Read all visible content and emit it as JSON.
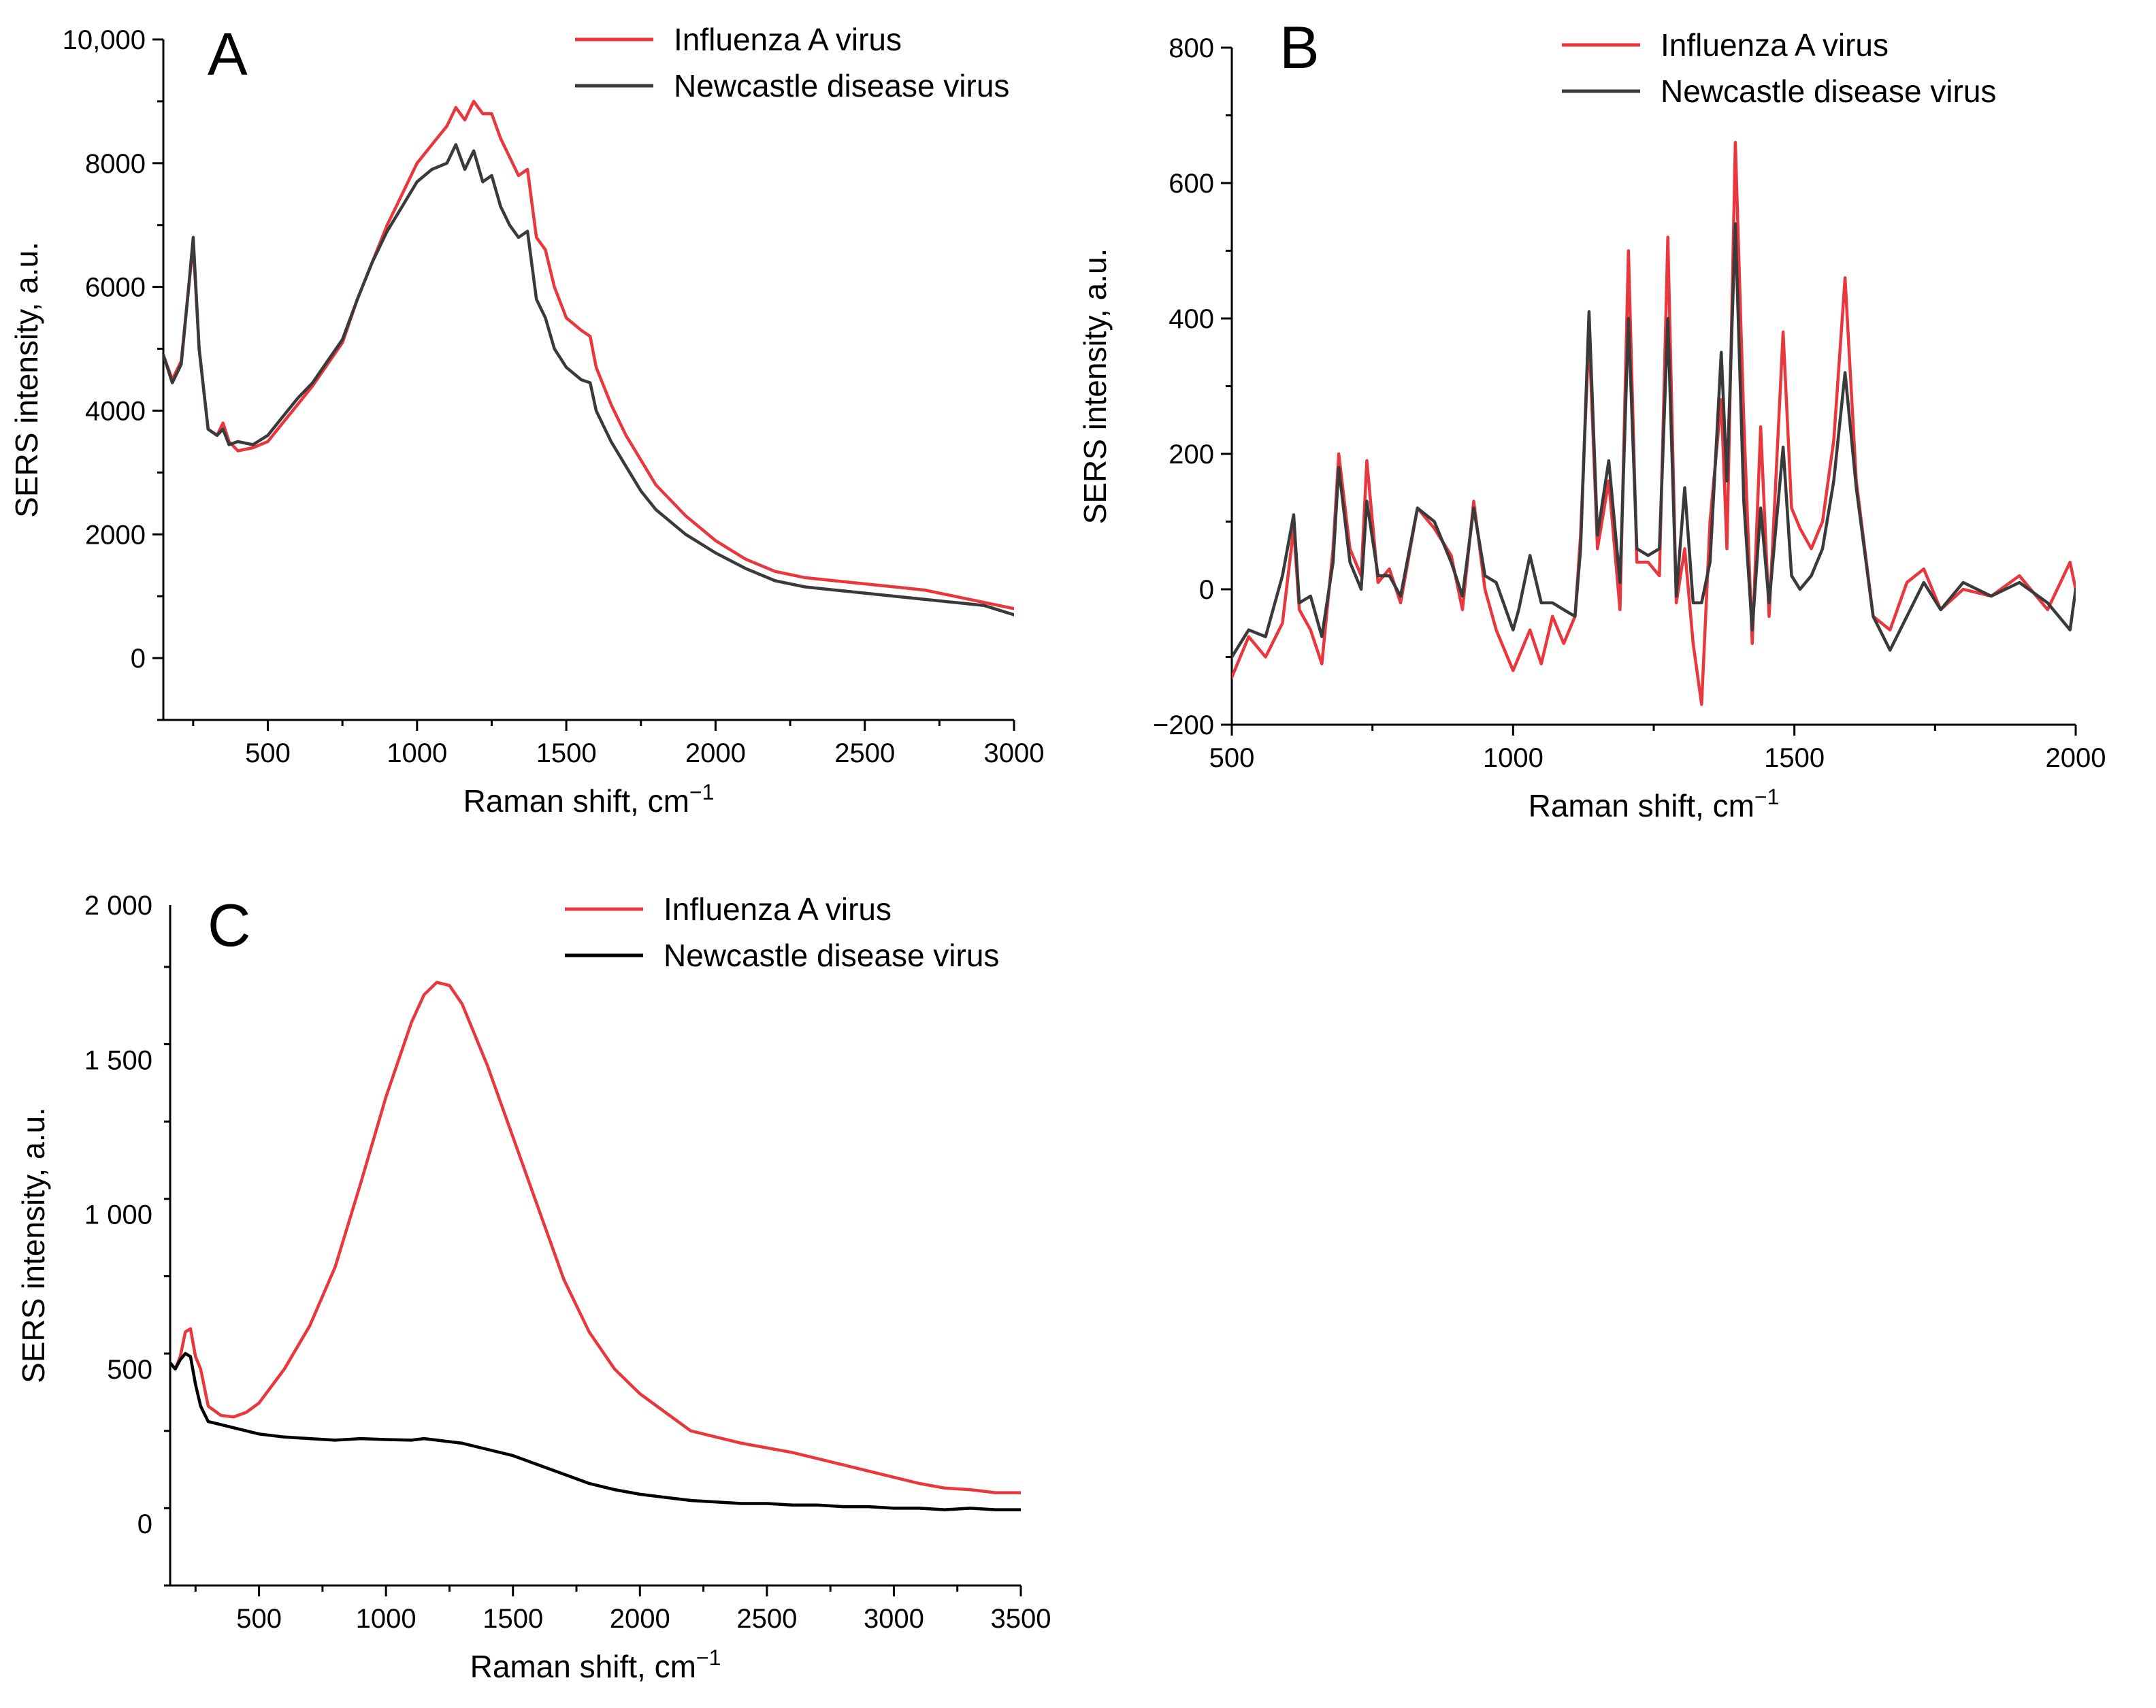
{
  "chart_data": [
    {
      "type": "line",
      "panel": "A",
      "xlabel": "Raman shift, cm",
      "xlabel_sup": "−1",
      "ylabel": "SERS intensity, a.u.",
      "xlim": [
        150,
        3000
      ],
      "ylim": [
        -1000,
        10000
      ],
      "xticks": [
        500,
        1000,
        1500,
        2000,
        2500,
        3000
      ],
      "xtick_labels": [
        "500",
        "1000",
        "1500",
        "2000",
        "2500",
        "3000"
      ],
      "yticks": [
        0,
        2000,
        4000,
        6000,
        8000,
        10000
      ],
      "ytick_labels": [
        "0",
        "2000",
        "4000",
        "6000",
        "8000",
        "10,000"
      ],
      "legend_position": "top-right",
      "series": [
        {
          "name": "Influenza A virus",
          "color": "#e8373d",
          "x": [
            150,
            180,
            210,
            235,
            250,
            270,
            300,
            330,
            350,
            370,
            400,
            450,
            500,
            550,
            600,
            650,
            700,
            750,
            800,
            850,
            900,
            950,
            1000,
            1050,
            1100,
            1130,
            1160,
            1190,
            1220,
            1250,
            1280,
            1310,
            1340,
            1370,
            1400,
            1430,
            1460,
            1500,
            1550,
            1580,
            1600,
            1650,
            1700,
            1750,
            1800,
            1900,
            2000,
            2100,
            2200,
            2300,
            2400,
            2500,
            2600,
            2700,
            2800,
            2900,
            3000
          ],
          "y": [
            4900,
            4500,
            4800,
            6000,
            6700,
            5000,
            3700,
            3600,
            3800,
            3500,
            3350,
            3400,
            3500,
            3800,
            4100,
            4400,
            4750,
            5100,
            5800,
            6400,
            7000,
            7500,
            8000,
            8300,
            8600,
            8900,
            8700,
            9000,
            8800,
            8800,
            8400,
            8100,
            7800,
            7900,
            6800,
            6600,
            6000,
            5500,
            5300,
            5200,
            4700,
            4100,
            3600,
            3200,
            2800,
            2300,
            1900,
            1600,
            1400,
            1300,
            1250,
            1200,
            1150,
            1100,
            1000,
            900,
            800
          ]
        },
        {
          "name": "Newcastle disease virus",
          "color": "#3a3a3a",
          "x": [
            150,
            180,
            210,
            235,
            250,
            270,
            300,
            330,
            350,
            370,
            400,
            450,
            500,
            550,
            600,
            650,
            700,
            750,
            800,
            850,
            900,
            950,
            1000,
            1050,
            1100,
            1130,
            1160,
            1190,
            1220,
            1250,
            1280,
            1310,
            1340,
            1370,
            1400,
            1430,
            1460,
            1500,
            1550,
            1580,
            1600,
            1650,
            1700,
            1750,
            1800,
            1900,
            2000,
            2100,
            2200,
            2300,
            2400,
            2500,
            2600,
            2700,
            2800,
            2900,
            3000
          ],
          "y": [
            4900,
            4450,
            4750,
            6000,
            6800,
            5000,
            3700,
            3600,
            3700,
            3450,
            3500,
            3450,
            3600,
            3900,
            4200,
            4450,
            4800,
            5150,
            5800,
            6400,
            6900,
            7300,
            7700,
            7900,
            8000,
            8300,
            7900,
            8200,
            7700,
            7800,
            7300,
            7000,
            6800,
            6900,
            5800,
            5500,
            5000,
            4700,
            4500,
            4450,
            4000,
            3500,
            3100,
            2700,
            2400,
            2000,
            1700,
            1450,
            1250,
            1150,
            1100,
            1050,
            1000,
            950,
            900,
            850,
            700
          ]
        }
      ]
    },
    {
      "type": "line",
      "panel": "B",
      "xlabel": "Raman shift, cm",
      "xlabel_sup": "−1",
      "ylabel": "SERS intensity, a.u.",
      "xlim": [
        500,
        2000
      ],
      "ylim": [
        -200,
        800
      ],
      "xticks": [
        500,
        1000,
        1500,
        2000
      ],
      "xtick_labels": [
        "500",
        "1000",
        "1500",
        "2000"
      ],
      "yticks": [
        -200,
        0,
        200,
        400,
        600,
        800
      ],
      "ytick_labels": [
        "−200",
        "0",
        "200",
        "400",
        "600",
        "800"
      ],
      "legend_position": "top-right",
      "series": [
        {
          "name": "Influenza A virus",
          "color": "#e8373d",
          "x": [
            500,
            530,
            560,
            590,
            610,
            620,
            640,
            660,
            680,
            690,
            710,
            730,
            740,
            760,
            780,
            800,
            830,
            860,
            890,
            910,
            930,
            950,
            970,
            1000,
            1010,
            1030,
            1050,
            1070,
            1090,
            1110,
            1120,
            1135,
            1150,
            1170,
            1190,
            1205,
            1220,
            1240,
            1260,
            1275,
            1290,
            1305,
            1320,
            1335,
            1350,
            1370,
            1380,
            1395,
            1410,
            1425,
            1440,
            1455,
            1480,
            1495,
            1510,
            1530,
            1550,
            1570,
            1590,
            1610,
            1640,
            1670,
            1700,
            1730,
            1760,
            1800,
            1850,
            1900,
            1950,
            1990,
            2000
          ],
          "y": [
            -130,
            -70,
            -100,
            -50,
            90,
            -30,
            -60,
            -110,
            60,
            200,
            60,
            20,
            190,
            10,
            30,
            -20,
            120,
            90,
            50,
            -30,
            130,
            0,
            -60,
            -120,
            -100,
            -60,
            -110,
            -40,
            -80,
            -40,
            80,
            380,
            60,
            160,
            -30,
            500,
            40,
            40,
            20,
            520,
            -20,
            60,
            -80,
            -170,
            100,
            280,
            60,
            660,
            250,
            -80,
            240,
            -40,
            380,
            120,
            90,
            60,
            100,
            220,
            460,
            160,
            -40,
            -60,
            10,
            30,
            -30,
            0,
            -10,
            20,
            -30,
            40,
            0
          ]
        },
        {
          "name": "Newcastle disease virus",
          "color": "#3a3a3a",
          "x": [
            500,
            530,
            560,
            590,
            610,
            620,
            640,
            660,
            680,
            690,
            710,
            730,
            740,
            760,
            780,
            800,
            830,
            860,
            890,
            910,
            930,
            950,
            970,
            1000,
            1010,
            1030,
            1050,
            1070,
            1090,
            1110,
            1120,
            1135,
            1150,
            1170,
            1190,
            1205,
            1220,
            1240,
            1260,
            1275,
            1290,
            1305,
            1320,
            1335,
            1350,
            1370,
            1380,
            1395,
            1410,
            1425,
            1440,
            1455,
            1480,
            1495,
            1510,
            1530,
            1550,
            1570,
            1590,
            1610,
            1640,
            1670,
            1700,
            1730,
            1760,
            1800,
            1850,
            1900,
            1950,
            1990,
            2000
          ],
          "y": [
            -100,
            -60,
            -70,
            20,
            110,
            -20,
            -10,
            -70,
            40,
            180,
            40,
            0,
            130,
            20,
            20,
            -10,
            120,
            100,
            40,
            -10,
            120,
            20,
            10,
            -60,
            -30,
            50,
            -20,
            -20,
            -30,
            -40,
            60,
            410,
            80,
            190,
            10,
            400,
            60,
            50,
            60,
            400,
            -10,
            150,
            -20,
            -20,
            40,
            350,
            160,
            540,
            130,
            -60,
            120,
            -20,
            210,
            20,
            0,
            20,
            60,
            160,
            320,
            150,
            -40,
            -90,
            -40,
            10,
            -30,
            10,
            -10,
            10,
            -20,
            -60,
            0
          ]
        }
      ]
    },
    {
      "type": "line",
      "panel": "C",
      "xlabel": "Raman shift, cm",
      "xlabel_sup": "−1",
      "ylabel": "SERS intensity, a.u.",
      "xlim": [
        150,
        3500
      ],
      "ylim": [
        -200,
        2000
      ],
      "xticks": [
        500,
        1000,
        1500,
        2000,
        2500,
        3000,
        3500
      ],
      "xtick_labels": [
        "500",
        "1000",
        "1500",
        "2000",
        "2500",
        "3000",
        "3500"
      ],
      "yticks": [
        0,
        500,
        1000,
        1500,
        2000
      ],
      "ytick_labels": [
        "0",
        "500",
        "1 000",
        "1 500",
        "2 000"
      ],
      "legend_position": "top-right",
      "series": [
        {
          "name": "Influenza A virus",
          "color": "#e8373d",
          "x": [
            150,
            170,
            190,
            210,
            230,
            250,
            270,
            300,
            350,
            400,
            450,
            500,
            600,
            700,
            800,
            900,
            1000,
            1100,
            1150,
            1200,
            1250,
            1300,
            1400,
            1500,
            1600,
            1700,
            1800,
            1900,
            2000,
            2100,
            2200,
            2300,
            2400,
            2500,
            2600,
            2700,
            2800,
            2900,
            3000,
            3100,
            3200,
            3300,
            3400,
            3500
          ],
          "y": [
            520,
            500,
            540,
            620,
            630,
            540,
            500,
            380,
            350,
            345,
            360,
            390,
            500,
            640,
            830,
            1100,
            1380,
            1620,
            1710,
            1750,
            1740,
            1680,
            1480,
            1250,
            1020,
            790,
            620,
            500,
            420,
            360,
            300,
            280,
            260,
            245,
            230,
            210,
            190,
            170,
            150,
            130,
            115,
            110,
            100,
            100
          ]
        },
        {
          "name": "Newcastle disease virus",
          "color": "#000000",
          "x": [
            150,
            170,
            190,
            210,
            230,
            250,
            270,
            300,
            350,
            400,
            450,
            500,
            600,
            700,
            800,
            900,
            1000,
            1100,
            1150,
            1200,
            1250,
            1300,
            1400,
            1500,
            1600,
            1700,
            1800,
            1900,
            2000,
            2100,
            2200,
            2300,
            2400,
            2500,
            2600,
            2700,
            2800,
            2900,
            3000,
            3100,
            3200,
            3300,
            3400,
            3500
          ],
          "y": [
            520,
            500,
            530,
            550,
            540,
            450,
            380,
            330,
            320,
            310,
            300,
            290,
            280,
            275,
            270,
            275,
            272,
            270,
            275,
            270,
            265,
            260,
            240,
            220,
            190,
            160,
            130,
            110,
            95,
            85,
            75,
            70,
            65,
            65,
            60,
            60,
            55,
            55,
            50,
            50,
            45,
            50,
            45,
            45
          ]
        }
      ]
    }
  ]
}
